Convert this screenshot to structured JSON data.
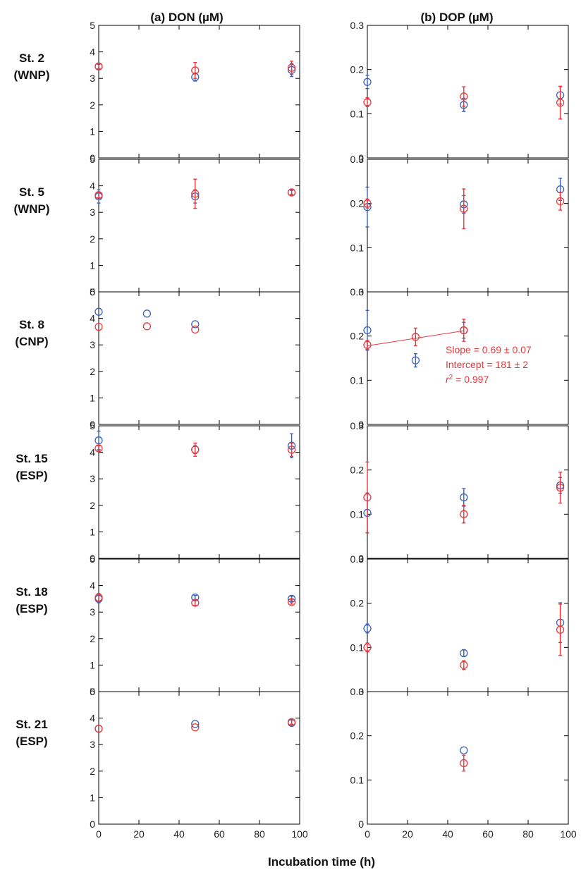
{
  "column_titles": [
    "(a) DON (µM)",
    "(b) DOP (µM)"
  ],
  "xlabel": "Incubation time (h)",
  "colors": {
    "blue": "#3a62b8",
    "red": "#e8383d",
    "axis": "#000000"
  },
  "chart_data": [
    {
      "type": "scatter",
      "panel": "DON",
      "row_label": [
        "St. 2",
        "(WNP)"
      ],
      "xlim": [
        0,
        100
      ],
      "ylim": [
        0,
        5
      ],
      "xticks": [
        "0",
        "20",
        "40",
        "60",
        "80",
        "100"
      ],
      "yticks": [
        "0",
        "1",
        "2",
        "3",
        "4",
        "5"
      ],
      "series": [
        {
          "color": "blue",
          "points": [
            {
              "x": 0,
              "y": 3.45,
              "err": 0.12
            },
            {
              "x": 48,
              "y": 3.05,
              "err": 0.15
            },
            {
              "x": 96,
              "y": 3.32,
              "err": 0.25
            }
          ]
        },
        {
          "color": "red",
          "points": [
            {
              "x": 0,
              "y": 3.45,
              "err": 0.08
            },
            {
              "x": 48,
              "y": 3.3,
              "err": 0.3
            },
            {
              "x": 96,
              "y": 3.4,
              "err": 0.25
            }
          ]
        }
      ]
    },
    {
      "type": "scatter",
      "panel": "DOP",
      "row_label": [
        "St. 2",
        "(WNP)"
      ],
      "xlim": [
        0,
        100
      ],
      "ylim": [
        0,
        0.3
      ],
      "xticks": [
        "0",
        "20",
        "40",
        "60",
        "80",
        "100"
      ],
      "yticks": [
        "0",
        "0.1",
        "0.2",
        "0.3"
      ],
      "series": [
        {
          "color": "blue",
          "points": [
            {
              "x": 0,
              "y": 0.172,
              "err": 0.015
            },
            {
              "x": 48,
              "y": 0.12,
              "err": 0.015
            },
            {
              "x": 96,
              "y": 0.142,
              "err": 0.02
            }
          ]
        },
        {
          "color": "red",
          "points": [
            {
              "x": 0,
              "y": 0.126,
              "err": 0.01
            },
            {
              "x": 48,
              "y": 0.139,
              "err": 0.022
            },
            {
              "x": 96,
              "y": 0.125,
              "err": 0.037
            }
          ]
        }
      ]
    },
    {
      "type": "scatter",
      "panel": "DON",
      "row_label": [
        "St. 5",
        "(WNP)"
      ],
      "xlim": [
        0,
        100
      ],
      "ylim": [
        0,
        5
      ],
      "xticks": [
        "0",
        "20",
        "40",
        "60",
        "80",
        "100"
      ],
      "yticks": [
        "0",
        "1",
        "2",
        "3",
        "4",
        "5"
      ],
      "series": [
        {
          "color": "blue",
          "points": [
            {
              "x": 0,
              "y": 3.6,
              "err": 0.25
            },
            {
              "x": 48,
              "y": 3.6,
              "err": 0.25
            },
            {
              "x": 96,
              "y": 3.75,
              "err": 0.08
            }
          ]
        },
        {
          "color": "red",
          "points": [
            {
              "x": 0,
              "y": 3.65,
              "err": 0.1
            },
            {
              "x": 48,
              "y": 3.7,
              "err": 0.55
            },
            {
              "x": 96,
              "y": 3.75,
              "err": 0.1
            }
          ]
        }
      ]
    },
    {
      "type": "scatter",
      "panel": "DOP",
      "row_label": [
        "St. 5",
        "(WNP)"
      ],
      "xlim": [
        0,
        100
      ],
      "ylim": [
        0,
        0.3
      ],
      "xticks": [
        "0",
        "20",
        "40",
        "60",
        "80",
        "100"
      ],
      "yticks": [
        "0",
        "0.1",
        "0.2",
        "0.3"
      ],
      "series": [
        {
          "color": "blue",
          "points": [
            {
              "x": 0,
              "y": 0.192,
              "err": 0.045
            },
            {
              "x": 48,
              "y": 0.198,
              "err": 0.02
            },
            {
              "x": 96,
              "y": 0.232,
              "err": 0.025
            }
          ]
        },
        {
          "color": "red",
          "points": [
            {
              "x": 0,
              "y": 0.2,
              "err": 0.01
            },
            {
              "x": 48,
              "y": 0.188,
              "err": 0.045
            },
            {
              "x": 96,
              "y": 0.205,
              "err": 0.02
            }
          ]
        }
      ]
    },
    {
      "type": "scatter",
      "panel": "DON",
      "row_label": [
        "St. 8",
        "(CNP)"
      ],
      "xlim": [
        0,
        100
      ],
      "ylim": [
        0,
        5
      ],
      "xticks": [
        "0",
        "20",
        "40",
        "60",
        "80",
        "100"
      ],
      "yticks": [
        "0",
        "1",
        "2",
        "3",
        "4",
        "5"
      ],
      "series": [
        {
          "color": "blue",
          "points": [
            {
              "x": 0,
              "y": 4.25
            },
            {
              "x": 24,
              "y": 4.18
            },
            {
              "x": 48,
              "y": 3.78
            }
          ]
        },
        {
          "color": "red",
          "points": [
            {
              "x": 0,
              "y": 3.68
            },
            {
              "x": 24,
              "y": 3.7
            },
            {
              "x": 48,
              "y": 3.58
            }
          ]
        }
      ]
    },
    {
      "type": "scatter",
      "panel": "DOP",
      "row_label": [
        "St. 8",
        "(CNP)"
      ],
      "xlim": [
        0,
        100
      ],
      "ylim": [
        0,
        0.3
      ],
      "xticks": [
        "0",
        "20",
        "40",
        "60",
        "80",
        "100"
      ],
      "yticks": [
        "0",
        "0.1",
        "0.2",
        "0.3"
      ],
      "series": [
        {
          "color": "blue",
          "points": [
            {
              "x": 0,
              "y": 0.213,
              "err": 0.045
            },
            {
              "x": 24,
              "y": 0.145,
              "err": 0.015
            },
            {
              "x": 48,
              "y": 0.213,
              "err": 0.018
            }
          ]
        },
        {
          "color": "red",
          "points": [
            {
              "x": 0,
              "y": 0.18,
              "err": 0.01
            },
            {
              "x": 24,
              "y": 0.198,
              "err": 0.02
            },
            {
              "x": 48,
              "y": 0.213,
              "err": 0.025
            }
          ]
        }
      ],
      "fit": {
        "color": "red",
        "x": [
          0,
          48
        ],
        "y": [
          0.178,
          0.212
        ]
      },
      "annotations": [
        "Slope  = 0.69 ± 0.07",
        "Intercept = 181 ± 2",
        "r² = 0.997"
      ]
    },
    {
      "type": "scatter",
      "panel": "DON",
      "row_label": [
        "St. 15",
        "(ESP)"
      ],
      "xlim": [
        0,
        100
      ],
      "ylim": [
        0,
        5
      ],
      "xticks": [
        "0",
        "20",
        "40",
        "60",
        "80",
        "100"
      ],
      "yticks": [
        "0",
        "1",
        "2",
        "3",
        "4",
        "5"
      ],
      "series": [
        {
          "color": "blue",
          "points": [
            {
              "x": 0,
              "y": 4.45,
              "err": 0.35
            },
            {
              "x": 48,
              "y": 4.1,
              "err": 0.15
            },
            {
              "x": 96,
              "y": 4.25,
              "err": 0.45
            }
          ]
        },
        {
          "color": "red",
          "points": [
            {
              "x": 0,
              "y": 4.15,
              "err": 0.1
            },
            {
              "x": 48,
              "y": 4.1,
              "err": 0.25
            },
            {
              "x": 96,
              "y": 4.1,
              "err": 0.25
            }
          ]
        }
      ]
    },
    {
      "type": "scatter",
      "panel": "DOP",
      "row_label": [
        "St. 15",
        "(ESP)"
      ],
      "xlim": [
        0,
        100
      ],
      "ylim": [
        0,
        0.3
      ],
      "xticks": [
        "0",
        "20",
        "40",
        "60",
        "80",
        "100"
      ],
      "yticks": [
        "0",
        "0.1",
        "0.2",
        "0.3"
      ],
      "series": [
        {
          "color": "blue",
          "points": [
            {
              "x": 0,
              "y": 0.103,
              "err": 0.045
            },
            {
              "x": 48,
              "y": 0.138,
              "err": 0.02
            },
            {
              "x": 96,
              "y": 0.165,
              "err": 0.018
            }
          ]
        },
        {
          "color": "red",
          "points": [
            {
              "x": 0,
              "y": 0.138,
              "err": 0.08
            },
            {
              "x": 48,
              "y": 0.1,
              "err": 0.02
            },
            {
              "x": 96,
              "y": 0.16,
              "err": 0.035
            }
          ]
        }
      ]
    },
    {
      "type": "scatter",
      "panel": "DON",
      "row_label": [
        "St. 18",
        "(ESP)"
      ],
      "xlim": [
        0,
        100
      ],
      "ylim": [
        0,
        5
      ],
      "xticks": [
        "0",
        "20",
        "40",
        "60",
        "80",
        "100"
      ],
      "yticks": [
        "0",
        "1",
        "2",
        "3",
        "4",
        "5"
      ],
      "series": [
        {
          "color": "blue",
          "points": [
            {
              "x": 0,
              "y": 3.5,
              "err": 0.15
            },
            {
              "x": 48,
              "y": 3.55,
              "err": 0.08
            },
            {
              "x": 96,
              "y": 3.5,
              "err": 0.1
            }
          ]
        },
        {
          "color": "red",
          "points": [
            {
              "x": 0,
              "y": 3.55,
              "err": 0.15
            },
            {
              "x": 48,
              "y": 3.35,
              "err": 0.1
            },
            {
              "x": 96,
              "y": 3.38,
              "err": 0.08
            }
          ]
        }
      ]
    },
    {
      "type": "scatter",
      "panel": "DOP",
      "row_label": [
        "St. 18",
        "(ESP)"
      ],
      "xlim": [
        0,
        100
      ],
      "ylim": [
        0,
        0.3
      ],
      "xticks": [
        "0",
        "20",
        "40",
        "60",
        "80",
        "100"
      ],
      "yticks": [
        "0",
        "0.1",
        "0.2",
        "0.3"
      ],
      "series": [
        {
          "color": "blue",
          "points": [
            {
              "x": 0,
              "y": 0.143,
              "err": 0.01
            },
            {
              "x": 48,
              "y": 0.087,
              "err": 0.008
            },
            {
              "x": 96,
              "y": 0.156,
              "err": 0.045
            }
          ]
        },
        {
          "color": "red",
          "points": [
            {
              "x": 0,
              "y": 0.1,
              "err": 0.01
            },
            {
              "x": 48,
              "y": 0.06,
              "err": 0.01
            },
            {
              "x": 96,
              "y": 0.14,
              "err": 0.058
            }
          ]
        }
      ]
    },
    {
      "type": "scatter",
      "panel": "DON",
      "row_label": [
        "St. 21",
        "(ESP)"
      ],
      "xlim": [
        0,
        100
      ],
      "ylim": [
        0,
        5
      ],
      "xticks": [
        "0",
        "20",
        "40",
        "60",
        "80",
        "100"
      ],
      "yticks": [
        "0",
        "1",
        "2",
        "3",
        "4",
        "5"
      ],
      "series": [
        {
          "color": "blue",
          "points": [
            {
              "x": 0,
              "y": 3.6
            },
            {
              "x": 48,
              "y": 3.78
            },
            {
              "x": 96,
              "y": 3.82,
              "err": 0.12
            }
          ]
        },
        {
          "color": "red",
          "points": [
            {
              "x": 0,
              "y": 3.6
            },
            {
              "x": 48,
              "y": 3.65
            },
            {
              "x": 96,
              "y": 3.85,
              "err": 0.08
            }
          ]
        }
      ]
    },
    {
      "type": "scatter",
      "panel": "DOP",
      "row_label": [
        "St. 21",
        "(ESP)"
      ],
      "xlim": [
        0,
        100
      ],
      "ylim": [
        0,
        0.3
      ],
      "xticks": [
        "0",
        "20",
        "40",
        "60",
        "80",
        "100"
      ],
      "yticks": [
        "0",
        "0.1",
        "0.2",
        "0.3"
      ],
      "series": [
        {
          "color": "blue",
          "points": [
            {
              "x": 48,
              "y": 0.167
            }
          ]
        },
        {
          "color": "red",
          "points": [
            {
              "x": 48,
              "y": 0.138,
              "err": 0.018
            }
          ]
        }
      ]
    }
  ]
}
